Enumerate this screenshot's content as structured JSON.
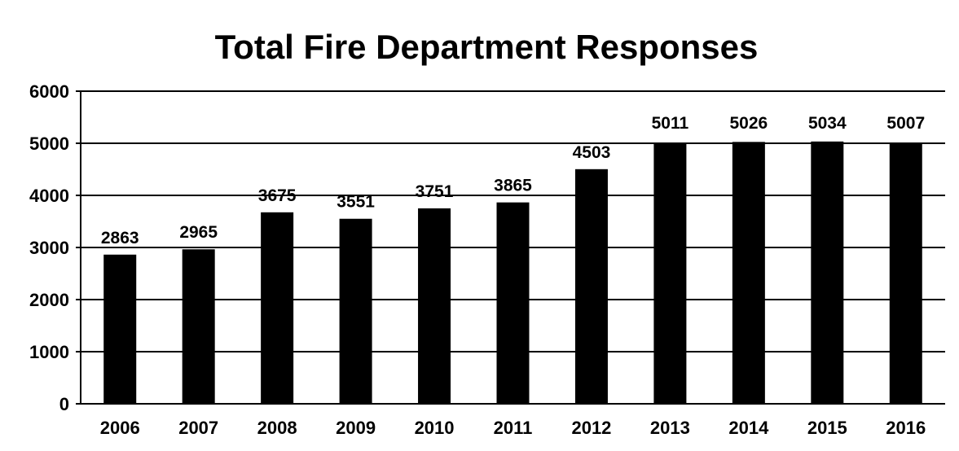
{
  "chart_data": {
    "type": "bar",
    "title": "Total Fire Department Responses",
    "xlabel": "",
    "ylabel": "",
    "categories": [
      "2006",
      "2007",
      "2008",
      "2009",
      "2010",
      "2011",
      "2012",
      "2013",
      "2014",
      "2015",
      "2016"
    ],
    "values": [
      2863,
      2965,
      3675,
      3551,
      3751,
      3865,
      4503,
      5011,
      5026,
      5034,
      5007
    ],
    "data_labels": [
      "2863",
      "2965",
      "3675",
      "3551",
      "3751",
      "3865",
      "4503",
      "5011",
      "5026",
      "5034",
      "5007"
    ],
    "ylim": [
      0,
      6000
    ],
    "yticks": [
      0,
      1000,
      2000,
      3000,
      4000,
      5000,
      6000
    ],
    "ytick_labels": [
      "0",
      "1000",
      "2000",
      "3000",
      "4000",
      "5000",
      "6000"
    ],
    "grid": true,
    "legend": "none",
    "colors": {
      "bar": "#000000",
      "grid": "#000000",
      "background": "#ffffff"
    }
  }
}
